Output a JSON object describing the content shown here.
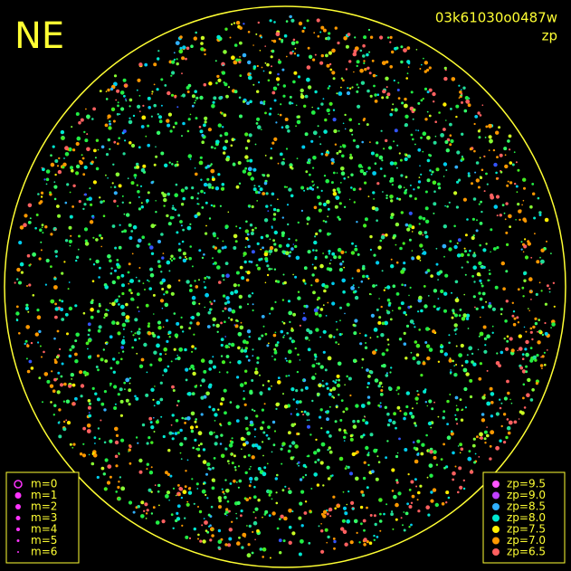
{
  "header": {
    "title": "NE",
    "id": "03k61030o0487w",
    "subtitle": "zp"
  },
  "magnitude_legend": [
    "m=0",
    "m=1",
    "m=2",
    "m=3",
    "m=4",
    "m=5",
    "m=6"
  ],
  "zp_legend": [
    {
      "label": "zp=9.5",
      "color": "#ff55ff"
    },
    {
      "label": "zp=9.0",
      "color": "#c040ff"
    },
    {
      "label": "zp=8.5",
      "color": "#30b0ff"
    },
    {
      "label": "zp=8.0",
      "color": "#00e8d0"
    },
    {
      "label": "zp=7.5",
      "color": "#ffee00"
    },
    {
      "label": "zp=7.0",
      "color": "#ff9900"
    },
    {
      "label": "zp=6.5",
      "color": "#ff6060"
    }
  ]
}
